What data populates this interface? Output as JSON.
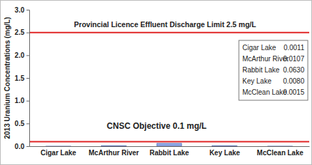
{
  "chart_data": {
    "type": "bar",
    "y_label": "2013 Uranium Concentrations (mg/L)",
    "categories": [
      "Cigar Lake",
      "McArthur River",
      "Rabbit Lake",
      "Key Lake",
      "McClean Lake"
    ],
    "values": [
      0.0011,
      0.0107,
      0.063,
      0.008,
      0.0015
    ],
    "value_labels": [
      "0.0011",
      "0.0107",
      "0.0630",
      "0.0080",
      "0.0015"
    ],
    "color": "#8fa8e6",
    "ylim": [
      0,
      3
    ],
    "yticks": [
      {
        "value": 0,
        "label": "0.0"
      },
      0.5,
      {
        "value": 1,
        "label": "1.0"
      },
      1.5,
      {
        "value": 2,
        "label": "2.0"
      },
      2.5,
      {
        "value": 3,
        "label": "3.0"
      }
    ],
    "grid": false,
    "reference_lines": [
      {
        "value": 2.5,
        "label": "Provincial Licence Effluent Discharge Limit 2.5 mg/L",
        "color": "#e02424"
      },
      {
        "value": 0.1,
        "label": "CNSC Objective 0.1 mg/L",
        "color": "#e02424"
      }
    ]
  }
}
